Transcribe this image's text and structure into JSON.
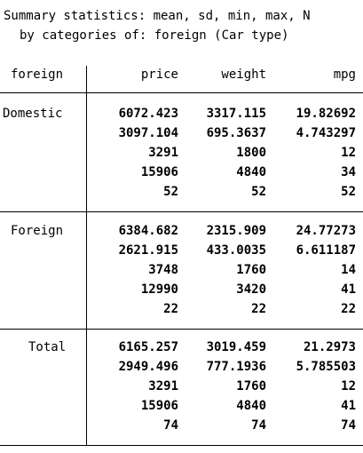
{
  "header": {
    "line1": "Summary statistics: mean, sd, min, max, N",
    "line2": "by categories of: foreign (Car type)"
  },
  "table": {
    "columns": [
      "foreign",
      "price",
      "weight",
      "mpg"
    ],
    "groups": [
      {
        "label": "Domestic",
        "rows": [
          [
            "6072.423",
            "3317.115",
            "19.82692"
          ],
          [
            "3097.104",
            "695.3637",
            "4.743297"
          ],
          [
            "3291",
            "1800",
            "12"
          ],
          [
            "15906",
            "4840",
            "34"
          ],
          [
            "52",
            "52",
            "52"
          ]
        ]
      },
      {
        "label": "Foreign",
        "rows": [
          [
            "6384.682",
            "2315.909",
            "24.77273"
          ],
          [
            "2621.915",
            "433.0035",
            "6.611187"
          ],
          [
            "3748",
            "1760",
            "14"
          ],
          [
            "12990",
            "3420",
            "41"
          ],
          [
            "22",
            "22",
            "22"
          ]
        ]
      },
      {
        "label": "Total",
        "rows": [
          [
            "6165.257",
            "3019.459",
            "21.2973"
          ],
          [
            "2949.496",
            "777.1936",
            "5.785503"
          ],
          [
            "3291",
            "1760",
            "12"
          ],
          [
            "15906",
            "4840",
            "41"
          ],
          [
            "74",
            "74",
            "74"
          ]
        ]
      }
    ]
  }
}
